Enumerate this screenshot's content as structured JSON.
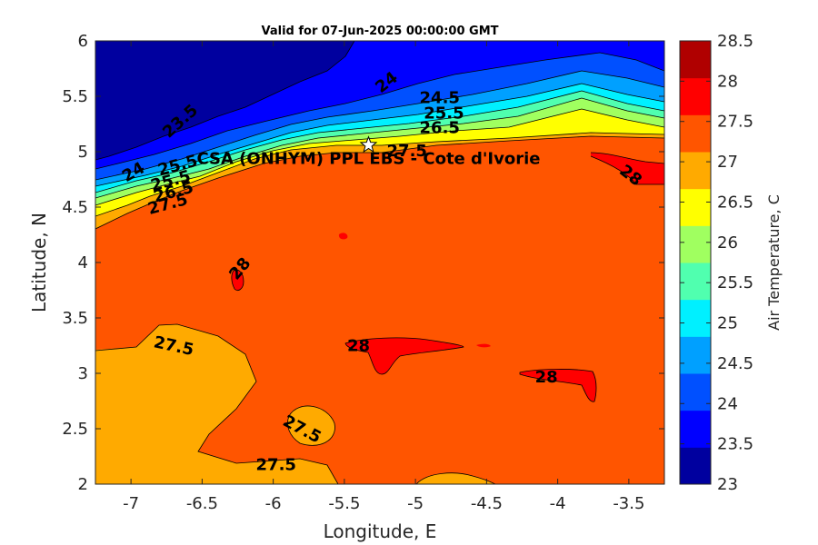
{
  "chart_data": {
    "type": "heatmap",
    "title": "Valid for 07-Jun-2025 00:00:00 GMT",
    "xlabel": "Longitude, E",
    "ylabel": "Latitude, N",
    "xlim": [
      -7.25,
      -3.25
    ],
    "ylim": [
      2,
      6
    ],
    "x_ticks": [
      -7,
      -6.5,
      -6,
      -5.5,
      -5,
      -4.5,
      -4,
      -3.5
    ],
    "y_ticks": [
      2,
      2.5,
      3,
      3.5,
      4,
      4.5,
      5,
      5.5,
      6
    ],
    "x_tick_labels": [
      "-7",
      "-6.5",
      "-6",
      "-5.5",
      "-5",
      "-4.5",
      "-4",
      "-3.5"
    ],
    "y_tick_labels": [
      "2",
      "2.5",
      "3",
      "3.5",
      "4",
      "4.5",
      "5",
      "5.5",
      "6"
    ],
    "colorbar": {
      "label": "Air Temperature, C",
      "levels": [
        23,
        23.5,
        24,
        24.5,
        25,
        25.5,
        26,
        26.5,
        27,
        27.5,
        28,
        28.5
      ],
      "tick_labels": [
        "23",
        "23.5",
        "24",
        "24.5",
        "25",
        "25.5",
        "26",
        "26.5",
        "27",
        "27.5",
        "28",
        "28.5"
      ],
      "colors": [
        "#00009f",
        "#0000ff",
        "#0050ff",
        "#00a0ff",
        "#00f0ff",
        "#50ffaf",
        "#a0ff60",
        "#ffff00",
        "#ffaa00",
        "#ff5500",
        "#ff0000",
        "#b00000"
      ]
    },
    "site": {
      "label": "CSA (ONHYM) PPL EBS - Cote d'Ivorie",
      "lon": -5.33,
      "lat": 5.06
    },
    "contour_labels": [
      {
        "text": "24",
        "lon": -6.98,
        "lat": 4.81,
        "angle": -30
      },
      {
        "text": "23.5",
        "lon": -6.65,
        "lat": 5.27,
        "angle": -42
      },
      {
        "text": "24",
        "lon": -5.2,
        "lat": 5.62,
        "angle": -38
      },
      {
        "text": "24.5",
        "lon": -4.83,
        "lat": 5.48,
        "angle": 0
      },
      {
        "text": "25.5",
        "lon": -4.8,
        "lat": 5.34,
        "angle": 0
      },
      {
        "text": "26.5",
        "lon": -4.83,
        "lat": 5.21,
        "angle": 0
      },
      {
        "text": "27.5",
        "lon": -5.06,
        "lat": 5.0,
        "angle": 0
      },
      {
        "text": "25.5",
        "lon": -6.67,
        "lat": 4.87,
        "angle": -15
      },
      {
        "text": "25.5",
        "lon": -6.72,
        "lat": 4.73,
        "angle": -15
      },
      {
        "text": "26.5",
        "lon": -6.7,
        "lat": 4.63,
        "angle": -15
      },
      {
        "text": "27.5",
        "lon": -6.74,
        "lat": 4.52,
        "angle": -15
      },
      {
        "text": "28",
        "lon": -3.49,
        "lat": 4.78,
        "angle": 38
      },
      {
        "text": "28",
        "lon": -6.23,
        "lat": 3.94,
        "angle": -50
      },
      {
        "text": "27.5",
        "lon": -6.7,
        "lat": 3.24,
        "angle": 12
      },
      {
        "text": "28",
        "lon": -5.4,
        "lat": 3.24,
        "angle": 0
      },
      {
        "text": "28",
        "lon": -4.08,
        "lat": 2.96,
        "angle": 0
      },
      {
        "text": "27.5",
        "lon": -5.8,
        "lat": 2.49,
        "angle": 28
      },
      {
        "text": "27.5",
        "lon": -5.98,
        "lat": 2.17,
        "angle": 0
      }
    ]
  }
}
